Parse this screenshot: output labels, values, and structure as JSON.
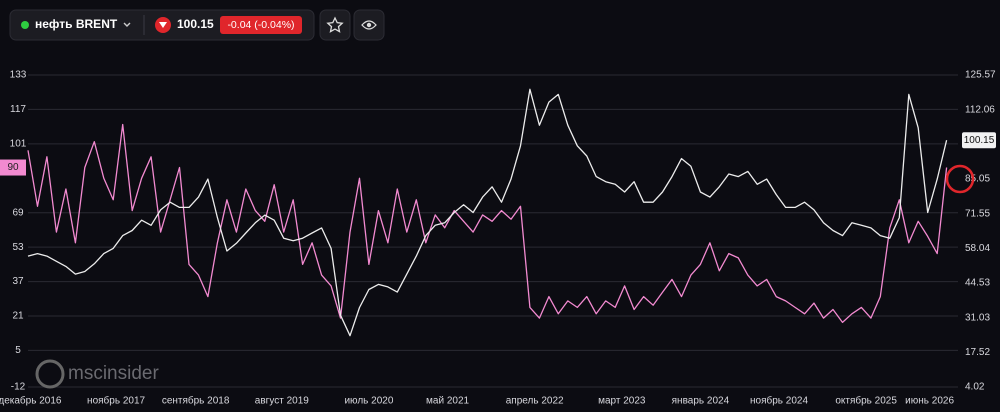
{
  "header": {
    "instrument": "нефть BRENT",
    "price": "100.15",
    "change": "-0.04 (-0.04%)"
  },
  "watermark": "mscinsider",
  "chart_data": {
    "type": "line",
    "x": [
      2016.9,
      2017.0,
      2017.1,
      2017.2,
      2017.3,
      2017.4,
      2017.5,
      2017.6,
      2017.7,
      2017.8,
      2017.9,
      2018.0,
      2018.1,
      2018.2,
      2018.3,
      2018.4,
      2018.5,
      2018.6,
      2018.7,
      2018.8,
      2018.9,
      2019.0,
      2019.1,
      2019.2,
      2019.3,
      2019.4,
      2019.5,
      2019.6,
      2019.7,
      2019.8,
      2019.9,
      2020.0,
      2020.1,
      2020.2,
      2020.3,
      2020.4,
      2020.5,
      2020.6,
      2020.7,
      2020.8,
      2020.9,
      2021.0,
      2021.1,
      2021.2,
      2021.3,
      2021.4,
      2021.5,
      2021.6,
      2021.7,
      2021.8,
      2021.9,
      2022.0,
      2022.1,
      2022.2,
      2022.3,
      2022.4,
      2022.5,
      2022.6,
      2022.7,
      2022.8,
      2022.9,
      2023.0,
      2023.1,
      2023.2,
      2023.3,
      2023.4,
      2023.5,
      2023.6,
      2023.7,
      2023.8,
      2023.9,
      2024.0,
      2024.1,
      2024.2,
      2024.3,
      2024.4,
      2024.5,
      2024.6,
      2024.7,
      2024.8,
      2024.9,
      2025.0,
      2025.1,
      2025.2,
      2025.3,
      2025.4,
      2025.5,
      2025.6,
      2025.7,
      2025.8,
      2025.9,
      2026.0,
      2026.1,
      2026.2,
      2026.3,
      2026.4,
      2026.5,
      2026.6
    ],
    "series": [
      {
        "name": "pink",
        "color": "#f28ad0",
        "axis": "y",
        "values": [
          98,
          72,
          95,
          60,
          80,
          55,
          90,
          102,
          85,
          75,
          110,
          70,
          85,
          95,
          60,
          75,
          90,
          45,
          40,
          30,
          55,
          75,
          60,
          80,
          70,
          65,
          82,
          60,
          75,
          45,
          55,
          40,
          35,
          20,
          60,
          85,
          45,
          70,
          55,
          80,
          60,
          75,
          55,
          68,
          62,
          70,
          65,
          60,
          68,
          65,
          70,
          66,
          72,
          25,
          20,
          30,
          22,
          28,
          25,
          30,
          22,
          28,
          25,
          35,
          24,
          30,
          26,
          32,
          38,
          30,
          40,
          45,
          55,
          42,
          50,
          48,
          40,
          35,
          38,
          30,
          28,
          25,
          22,
          27,
          20,
          24,
          18,
          22,
          25,
          20,
          30,
          62,
          75,
          55,
          65,
          58,
          50,
          90
        ]
      },
      {
        "name": "brent",
        "color": "#ececec",
        "axis": "y2",
        "values": [
          55,
          56,
          55,
          53,
          51,
          48,
          49,
          52,
          56,
          58,
          63,
          65,
          69,
          67,
          73,
          76,
          74,
          74,
          78,
          85,
          70,
          57,
          60,
          64,
          68,
          71,
          69,
          62,
          61,
          62,
          64,
          66,
          58,
          32,
          24,
          35,
          42,
          44,
          43,
          41,
          48,
          55,
          63,
          67,
          68,
          72,
          75,
          72,
          78,
          82,
          76,
          85,
          98,
          120,
          106,
          115,
          118,
          106,
          98,
          94,
          86,
          84,
          83,
          80,
          84,
          76,
          76,
          80,
          86,
          93,
          90,
          80,
          78,
          82,
          87,
          86,
          88,
          83,
          85,
          79,
          74,
          74,
          76,
          73,
          68,
          65,
          63,
          68,
          67,
          66,
          63,
          62,
          70,
          118,
          105,
          72,
          85,
          100.15
        ]
      }
    ],
    "xlim": [
      2016.9,
      2026.72
    ],
    "xticks": [
      {
        "value": 2016.92,
        "label": "декабрь 2016"
      },
      {
        "value": 2017.83,
        "label": "ноябрь 2017"
      },
      {
        "value": 2018.67,
        "label": "сентябрь 2018"
      },
      {
        "value": 2019.58,
        "label": "август 2019"
      },
      {
        "value": 2020.5,
        "label": "июль 2020"
      },
      {
        "value": 2021.33,
        "label": "май 2021"
      },
      {
        "value": 2022.25,
        "label": "апрель 2022"
      },
      {
        "value": 2023.17,
        "label": "март 2023"
      },
      {
        "value": 2024.0,
        "label": "январь 2024"
      },
      {
        "value": 2024.83,
        "label": "ноябрь 2024"
      },
      {
        "value": 2025.75,
        "label": "октябрь 2025"
      },
      {
        "value": 2026.42,
        "label": "июнь 2026"
      }
    ],
    "ylim": [
      -12,
      133
    ],
    "yticks": [
      133,
      117,
      101,
      69,
      53,
      37,
      21,
      5,
      -12
    ],
    "y2lim": [
      4.02,
      125.57
    ],
    "y2ticks": [
      125.57,
      112.06,
      85.05,
      71.55,
      58.04,
      44.53,
      31.03,
      17.52,
      4.02
    ],
    "grid": true,
    "left_price_label": 90,
    "right_price_label": 100.15
  }
}
